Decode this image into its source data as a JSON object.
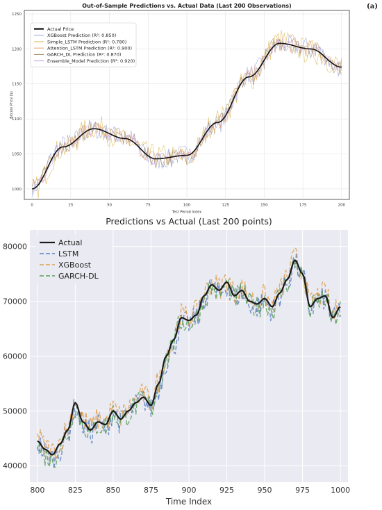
{
  "panel_label": "(a)",
  "chart_data": [
    {
      "type": "line",
      "title": "Out-of-Sample Predictions vs. Actual Data (Last 200 Observations)",
      "xlabel": "Test Period Index",
      "ylabel": "Bitcoin Price ($)",
      "xlim": [
        -5,
        205
      ],
      "ylim": [
        985,
        1255
      ],
      "xticks": [
        0,
        25,
        50,
        75,
        100,
        125,
        150,
        175,
        200
      ],
      "yticks": [
        1000,
        1050,
        1100,
        1150,
        1200,
        1250
      ],
      "grid": true,
      "legend_position": "upper-left",
      "x": [
        0,
        20,
        40,
        60,
        80,
        100,
        120,
        140,
        160,
        180,
        200
      ],
      "series": [
        {
          "name": "Actual Price",
          "color": "#111111",
          "values": [
            1000,
            1060,
            1086,
            1072,
            1043,
            1048,
            1095,
            1160,
            1208,
            1200,
            1174
          ]
        },
        {
          "name": "XGBoost Prediction (R²: 0.850)",
          "color": "#8fa0dc",
          "noise": 14,
          "values": [
            1002,
            1063,
            1084,
            1075,
            1040,
            1050,
            1093,
            1163,
            1206,
            1203,
            1172
          ]
        },
        {
          "name": "Simple_LSTM Prediction (R²: 0.780)",
          "color": "#d9b44a",
          "noise": 18,
          "values": [
            998,
            1058,
            1089,
            1068,
            1046,
            1044,
            1098,
            1157,
            1212,
            1196,
            1176
          ]
        },
        {
          "name": "Attention_LSTM Prediction (R²: 0.900)",
          "color": "#e9a06e",
          "noise": 11,
          "values": [
            1001,
            1062,
            1085,
            1071,
            1044,
            1049,
            1094,
            1161,
            1207,
            1201,
            1173
          ]
        },
        {
          "name": "GARCH_DL Prediction (R²: 0.870)",
          "color": "#a08a62",
          "noise": 13,
          "values": [
            999,
            1061,
            1087,
            1073,
            1042,
            1047,
            1096,
            1159,
            1209,
            1199,
            1175
          ]
        },
        {
          "name": "Ensemble_Model Prediction (R²: 0.920)",
          "color": "#c79bd8",
          "noise": 9,
          "values": [
            1000,
            1060,
            1086,
            1072,
            1043,
            1048,
            1095,
            1160,
            1208,
            1200,
            1174
          ]
        }
      ]
    },
    {
      "type": "line",
      "title": "Predictions vs Actual (Last 200 points)",
      "xlabel": "Time Index",
      "ylabel": "",
      "xlim": [
        795,
        1005
      ],
      "ylim": [
        37000,
        83000
      ],
      "xticks": [
        800,
        825,
        850,
        875,
        900,
        925,
        950,
        975,
        1000
      ],
      "yticks": [
        40000,
        50000,
        60000,
        70000,
        80000
      ],
      "grid": true,
      "legend_position": "upper-left",
      "x": [
        800,
        805,
        810,
        815,
        820,
        825,
        830,
        835,
        840,
        845,
        850,
        855,
        860,
        865,
        870,
        875,
        880,
        885,
        890,
        895,
        900,
        905,
        910,
        915,
        920,
        925,
        930,
        935,
        940,
        945,
        950,
        955,
        960,
        965,
        970,
        975,
        980,
        985,
        990,
        995,
        1000
      ],
      "series": [
        {
          "name": "Actual",
          "color": "#1a1a1a",
          "dash": "",
          "values": [
            44500,
            43000,
            42000,
            44000,
            46500,
            51500,
            48000,
            46500,
            48000,
            47500,
            50000,
            48500,
            50000,
            51500,
            52500,
            51000,
            55000,
            60000,
            63000,
            67000,
            66500,
            67500,
            71000,
            73000,
            72000,
            73500,
            71000,
            72000,
            70000,
            69500,
            70500,
            69000,
            71500,
            74000,
            77500,
            75000,
            69000,
            70500,
            71000,
            67000,
            69000
          ]
        },
        {
          "name": "LSTM",
          "color": "#5b7fc4",
          "dash": "6,3",
          "noise": 2200,
          "values": [
            44000,
            42500,
            41500,
            43000,
            46000,
            50500,
            47500,
            46000,
            47500,
            47000,
            49500,
            48000,
            49500,
            51000,
            52000,
            50500,
            54000,
            59000,
            62000,
            66000,
            66000,
            67000,
            70500,
            72500,
            71000,
            73000,
            70500,
            71500,
            69500,
            69000,
            70000,
            68500,
            71000,
            73500,
            77000,
            74500,
            68500,
            70000,
            70500,
            66500,
            68500
          ]
        },
        {
          "name": "XGBoost",
          "color": "#e0a050",
          "dash": "6,3",
          "noise": 2200,
          "values": [
            45500,
            43500,
            42500,
            44500,
            47000,
            52000,
            48500,
            47000,
            48500,
            48000,
            50500,
            49000,
            50500,
            52000,
            53000,
            51500,
            55500,
            60500,
            63500,
            67500,
            67000,
            68000,
            71500,
            73500,
            72500,
            74000,
            71500,
            72500,
            70500,
            70000,
            71000,
            69500,
            72000,
            74500,
            78000,
            75500,
            69500,
            71000,
            71500,
            67500,
            69500
          ]
        },
        {
          "name": "GARCH-DL",
          "color": "#5aa05a",
          "dash": "6,3",
          "noise": 2200,
          "values": [
            43500,
            42000,
            41000,
            43500,
            46000,
            51000,
            47500,
            46000,
            47500,
            47000,
            49500,
            48000,
            49500,
            51000,
            52000,
            50500,
            54500,
            59500,
            62500,
            66500,
            66000,
            67000,
            70500,
            72500,
            71500,
            73000,
            70500,
            71500,
            69500,
            69000,
            70000,
            68500,
            71000,
            73500,
            77000,
            74500,
            68500,
            70000,
            70500,
            66500,
            68500
          ]
        }
      ]
    }
  ]
}
